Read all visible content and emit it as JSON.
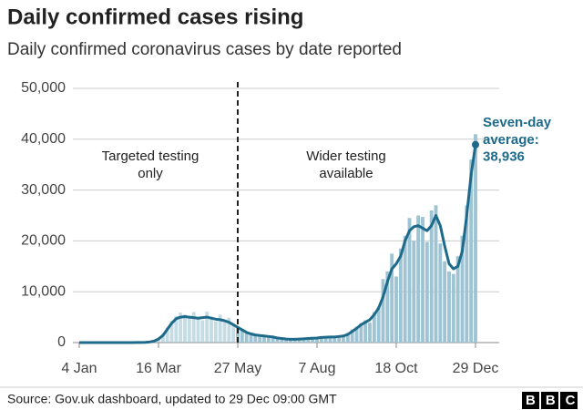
{
  "chart_data": {
    "type": "bar-line",
    "title": "Daily confirmed cases rising",
    "subtitle": "Daily confirmed coronavirus cases by date reported",
    "categories": [
      "4 Jan",
      null,
      null,
      null,
      null,
      null,
      null,
      null,
      null,
      null,
      null,
      null,
      null,
      null,
      null,
      null,
      null,
      null,
      "16 Mar",
      null,
      null,
      null,
      null,
      null,
      null,
      null,
      null,
      null,
      null,
      null,
      null,
      null,
      null,
      null,
      null,
      null,
      "27 May",
      null,
      null,
      null,
      null,
      null,
      null,
      null,
      null,
      null,
      null,
      null,
      null,
      null,
      null,
      null,
      null,
      null,
      "7 Aug",
      null,
      null,
      null,
      null,
      null,
      null,
      null,
      null,
      null,
      null,
      null,
      null,
      null,
      null,
      null,
      null,
      null,
      "18 Oct",
      null,
      null,
      null,
      null,
      null,
      null,
      null,
      null,
      null,
      null,
      null,
      null,
      null,
      null,
      null,
      null,
      null,
      "29 Dec"
    ],
    "series": [
      {
        "name": "Daily cases",
        "kind": "bar",
        "color": "#9ec4d4",
        "values": [
          0,
          0,
          0,
          0,
          0,
          0,
          0,
          2,
          5,
          2,
          8,
          3,
          10,
          15,
          30,
          60,
          160,
          400,
          900,
          1700,
          3000,
          4300,
          5200,
          5900,
          5500,
          4800,
          6000,
          5000,
          4400,
          6100,
          5100,
          4200,
          5500,
          4000,
          4900,
          3300,
          2800,
          2700,
          1900,
          1600,
          1700,
          1300,
          1500,
          1000,
          1200,
          800,
          900,
          600,
          700,
          600,
          800,
          700,
          900,
          800,
          1000,
          1100,
          900,
          1300,
          1000,
          1400,
          1200,
          1900,
          2600,
          3100,
          3800,
          4400,
          3900,
          6000,
          7100,
          12500,
          14000,
          17500,
          13000,
          18500,
          21000,
          24500,
          20000,
          25000,
          24700,
          19800,
          26000,
          27000,
          19500,
          16000,
          14000,
          13500,
          17000,
          21000,
          27000,
          36000,
          41000
        ]
      },
      {
        "name": "Seven-day average",
        "kind": "line",
        "color": "#1d6a8a",
        "values": [
          0,
          0,
          0,
          0,
          0,
          0,
          0,
          2,
          3,
          3,
          4,
          5,
          7,
          12,
          20,
          50,
          120,
          300,
          700,
          1400,
          2600,
          3800,
          4700,
          5000,
          5100,
          5000,
          4900,
          4800,
          4900,
          5000,
          4800,
          4600,
          4500,
          4300,
          4000,
          3500,
          3000,
          2500,
          2000,
          1700,
          1500,
          1400,
          1300,
          1200,
          1100,
          900,
          800,
          700,
          650,
          650,
          700,
          750,
          800,
          850,
          900,
          1000,
          1050,
          1100,
          1100,
          1200,
          1300,
          1600,
          2200,
          2800,
          3500,
          4000,
          4500,
          5500,
          6800,
          9000,
          12000,
          14500,
          15500,
          17000,
          20000,
          22000,
          22800,
          23000,
          22500,
          22000,
          23000,
          25000,
          23000,
          19000,
          15500,
          14500,
          15000,
          18000,
          25000,
          33000,
          38936
        ],
        "value_labels": [
          null,
          null,
          null,
          null,
          null,
          null,
          null,
          null,
          null,
          null,
          null,
          null,
          null,
          null,
          null,
          null,
          null,
          null,
          null,
          null,
          null,
          null,
          null,
          null,
          null,
          null,
          null,
          null,
          null,
          null,
          null,
          null,
          null,
          null,
          null,
          null,
          null,
          null,
          null,
          null,
          null,
          null,
          null,
          null,
          null,
          null,
          null,
          null,
          null,
          null,
          null,
          null,
          null,
          null,
          null,
          null,
          null,
          null,
          null,
          null,
          null,
          null,
          null,
          null,
          null,
          null,
          null,
          null,
          null,
          null,
          null,
          null,
          null,
          null,
          null,
          null,
          null,
          null,
          null,
          null,
          null,
          null,
          null,
          null,
          null,
          null,
          null,
          null,
          null,
          null,
          "38,936"
        ]
      }
    ],
    "ylim": [
      0,
      50000
    ],
    "yticks": [
      0,
      {
        "value": 10000,
        "label": "10,000"
      },
      {
        "value": 20000,
        "label": "20,000"
      },
      {
        "value": 30000,
        "label": "30,000"
      },
      {
        "value": 40000,
        "label": "40,000"
      },
      {
        "value": 50000,
        "label": "50,000"
      }
    ],
    "grid": true,
    "divider_index": 36,
    "annotations": {
      "before": [
        "Targeted testing",
        "only"
      ],
      "after": [
        "Wider testing",
        "available"
      ],
      "average": [
        "Seven-day",
        "average:"
      ]
    }
  },
  "source": "Source: Gov.uk dashboard, updated to 29 Dec 09:00 GMT",
  "logo": "BBC"
}
